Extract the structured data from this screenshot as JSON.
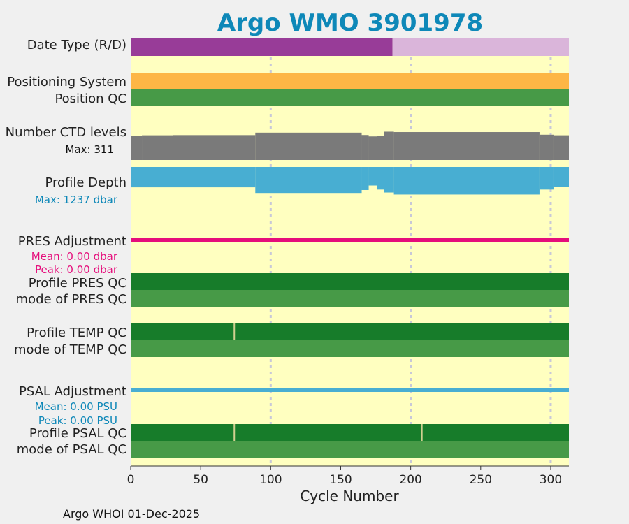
{
  "chart_data": {
    "type": "timeline",
    "title": "Argo WMO 3901978",
    "xlabel": "Cycle Number",
    "xlim": [
      0,
      313
    ],
    "xticks": [
      0,
      50,
      100,
      150,
      200,
      250,
      300
    ],
    "xtick_labels": [
      "0",
      "50",
      "100",
      "150",
      "200",
      "250",
      "300"
    ],
    "gridlines_x": [
      100,
      200,
      300
    ],
    "colors": {
      "background": "#ffffc0",
      "accent": "#0e88b8",
      "realtime": "#983c98",
      "delayed": "#dab5da",
      "positioning": "#fdb645",
      "qc_good": "#479a47",
      "qc_profile_a": "#177c2a",
      "ctd": "#7a7a7a",
      "depth": "#48aed2",
      "pres_adj": "#e50d7b",
      "psal_adj": "#48aed2",
      "marker": "#d0d090"
    },
    "rows": {
      "date_type": {
        "label": "Date Type (R/D)",
        "realtime_until_cycle": 187
      },
      "positioning_system": {
        "label": "Positioning System"
      },
      "position_qc": {
        "label": "Position QC"
      },
      "ctd_levels": {
        "label": "Number CTD levels",
        "max_label": "Max: 311",
        "max": 311
      },
      "profile_depth": {
        "label": "Profile Depth",
        "max_label": "Max: 1237 dbar",
        "max": 1237
      },
      "pres_adjustment": {
        "label": "PRES Adjustment",
        "mean_label": "Mean: 0.00 dbar",
        "peak_label": "Peak: 0.00 dbar"
      },
      "profile_pres_qc": {
        "label": "Profile PRES QC",
        "markers": []
      },
      "mode_pres_qc": {
        "label": "mode of PRES QC"
      },
      "profile_temp_qc": {
        "label": "Profile TEMP QC",
        "markers": [
          74
        ]
      },
      "mode_temp_qc": {
        "label": "mode of TEMP QC"
      },
      "psal_adjustment": {
        "label": "PSAL Adjustment",
        "mean_label": "Mean: 0.00 PSU",
        "peak_label": "Peak: 0.00 PSU"
      },
      "profile_psal_qc": {
        "label": "Profile PSAL QC",
        "markers": [
          74,
          208
        ]
      },
      "mode_psal_qc": {
        "label": "mode of PSAL QC"
      }
    },
    "ctd_segments": [
      {
        "from": 0,
        "to": 8,
        "value": 255
      },
      {
        "from": 8,
        "to": 30,
        "value": 262
      },
      {
        "from": 30,
        "to": 89,
        "value": 264
      },
      {
        "from": 89,
        "to": 165,
        "value": 290
      },
      {
        "from": 165,
        "to": 170,
        "value": 265
      },
      {
        "from": 170,
        "to": 176,
        "value": 250
      },
      {
        "from": 176,
        "to": 181,
        "value": 258
      },
      {
        "from": 181,
        "to": 188,
        "value": 300
      },
      {
        "from": 188,
        "to": 292,
        "value": 296
      },
      {
        "from": 292,
        "to": 302,
        "value": 268
      },
      {
        "from": 302,
        "to": 313,
        "value": 262
      }
    ],
    "depth_segments": [
      {
        "from": 0,
        "to": 89,
        "value": 900
      },
      {
        "from": 89,
        "to": 165,
        "value": 1150
      },
      {
        "from": 165,
        "to": 170,
        "value": 1020
      },
      {
        "from": 170,
        "to": 176,
        "value": 820
      },
      {
        "from": 176,
        "to": 181,
        "value": 1000
      },
      {
        "from": 181,
        "to": 188,
        "value": 1130
      },
      {
        "from": 188,
        "to": 292,
        "value": 1220
      },
      {
        "from": 292,
        "to": 302,
        "value": 1000
      },
      {
        "from": 302,
        "to": 313,
        "value": 880
      }
    ]
  },
  "footer": "Argo WHOI 01-Dec-2025"
}
